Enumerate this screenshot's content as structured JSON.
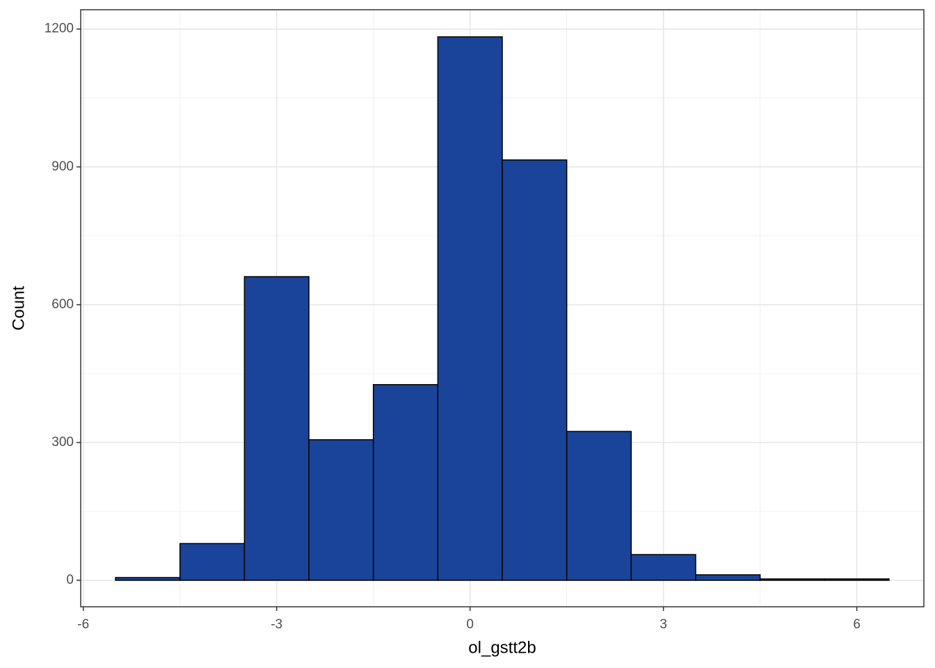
{
  "chart_data": {
    "type": "histogram",
    "x_label": "ol_gstt2b",
    "y_label": "Count",
    "bins": [
      -5.5,
      -4.5,
      -3.5,
      -2.5,
      -1.5,
      -0.5,
      0.5,
      1.5,
      2.5,
      3.5,
      4.5,
      5.5,
      6.5
    ],
    "values": [
      6,
      80,
      661,
      306,
      426,
      1183,
      915,
      324,
      56,
      12,
      3,
      3
    ],
    "color": "#1a4499",
    "edge_color": "#000000",
    "xlim": [
      -6.04,
      7.04
    ],
    "xticks": [
      -6,
      -3,
      0,
      3,
      6
    ],
    "ylim": [
      -57.6,
      1242
    ],
    "yticks": [
      0,
      300,
      600,
      900,
      1200
    ],
    "grid": true
  }
}
